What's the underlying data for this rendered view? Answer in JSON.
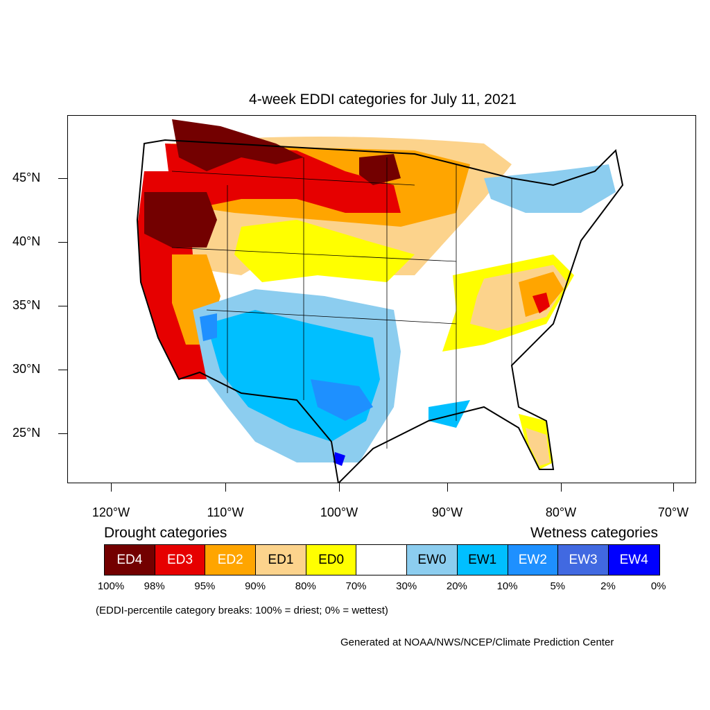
{
  "title": "4-week EDDI categories for July 11, 2021",
  "map": {
    "lat_labels": [
      "45°N",
      "40°N",
      "35°N",
      "30°N",
      "25°N"
    ],
    "lon_labels": [
      "120°W",
      "110°W",
      "100°W",
      "90°W",
      "80°W",
      "70°W"
    ]
  },
  "legend": {
    "drought_heading": "Drought categories",
    "wetness_heading": "Wetness categories",
    "categories": [
      {
        "label": "ED4",
        "color": "#730000",
        "text_color": "#ffffff"
      },
      {
        "label": "ED3",
        "color": "#e60000",
        "text_color": "#ffffff"
      },
      {
        "label": "ED2",
        "color": "#ffa500",
        "text_color": "#ffffff"
      },
      {
        "label": "ED1",
        "color": "#fcd38c",
        "text_color": "#000000"
      },
      {
        "label": "ED0",
        "color": "#ffff00",
        "text_color": "#000000"
      },
      {
        "label": "",
        "color": "#ffffff",
        "text_color": "#000000"
      },
      {
        "label": "EW0",
        "color": "#8ccdef",
        "text_color": "#000000"
      },
      {
        "label": "EW1",
        "color": "#00bfff",
        "text_color": "#000000"
      },
      {
        "label": "EW2",
        "color": "#1e90ff",
        "text_color": "#ffffff"
      },
      {
        "label": "EW3",
        "color": "#4169e1",
        "text_color": "#ffffff"
      },
      {
        "label": "EW4",
        "color": "#0000ff",
        "text_color": "#ffffff"
      }
    ],
    "percentiles": [
      "100%",
      "98%",
      "95%",
      "90%",
      "80%",
      "70%",
      "30%",
      "20%",
      "10%",
      "5%",
      "2%",
      "0%"
    ],
    "note": "(EDDI-percentile category breaks: 100% = driest; 0% = wettest)"
  },
  "credit": "Generated at NOAA/NWS/NCEP/Climate Prediction Center"
}
